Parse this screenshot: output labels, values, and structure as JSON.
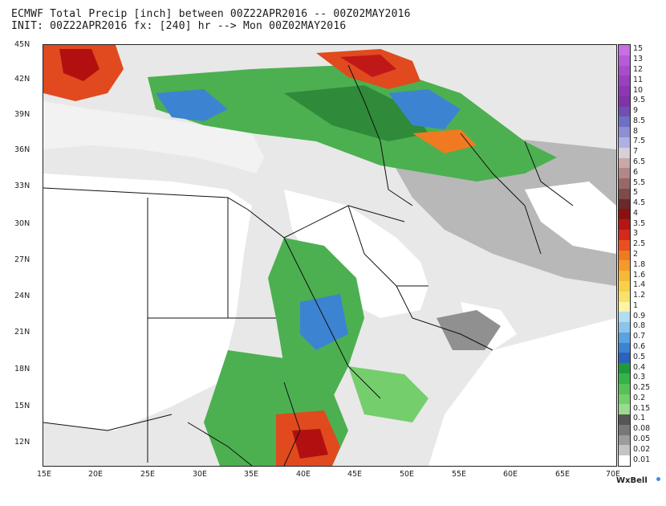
{
  "title_line1": "ECMWF Total Precip [inch] between 00Z22APR2016 -- 00Z02MAY2016",
  "title_line2": "INIT: 00Z22APR2016 fx: [240] hr --> Mon 00Z02MAY2016",
  "lat_labels": [
    "45N",
    "42N",
    "39N",
    "36N",
    "33N",
    "30N",
    "27N",
    "24N",
    "21N",
    "18N",
    "15N",
    "12N"
  ],
  "lon_labels": [
    "15E",
    "20E",
    "25E",
    "30E",
    "35E",
    "40E",
    "45E",
    "50E",
    "55E",
    "60E",
    "65E",
    "70E"
  ],
  "lat_range": [
    10,
    45
  ],
  "lon_range": [
    15,
    70
  ],
  "colorbar": {
    "labels": [
      "15",
      "13",
      "12",
      "11",
      "10",
      "9.5",
      "9",
      "8.5",
      "8",
      "7.5",
      "7",
      "6.5",
      "6",
      "5.5",
      "5",
      "4.5",
      "4",
      "3.5",
      "3",
      "2.5",
      "2",
      "1.8",
      "1.6",
      "1.4",
      "1.2",
      "1",
      "0.9",
      "0.8",
      "0.7",
      "0.6",
      "0.5",
      "0.4",
      "0.3",
      "0.25",
      "0.2",
      "0.15",
      "0.1",
      "0.08",
      "0.05",
      "0.02",
      "0.01"
    ],
    "colors": [
      "#c76fe3",
      "#b65ad8",
      "#a84ccc",
      "#9a40c0",
      "#8c38b4",
      "#7f33a8",
      "#6f4fb0",
      "#6f70c4",
      "#8d8ed4",
      "#aeb0e2",
      "#d6d0d8",
      "#c8a8a8",
      "#b08888",
      "#986868",
      "#7e4a4a",
      "#6a2a2a",
      "#8c1010",
      "#b41616",
      "#d42a1c",
      "#e85020",
      "#f07a22",
      "#f49a2c",
      "#f6b838",
      "#f8d04a",
      "#f8e26a",
      "#fdf3a4",
      "#b2dcf2",
      "#8cc4ec",
      "#5aa2e0",
      "#3c84d2",
      "#2a62bc",
      "#1e9a3a",
      "#34b448",
      "#54c258",
      "#74ce6c",
      "#98dc8c",
      "#565656",
      "#787878",
      "#9c9c9c",
      "#c4c4c4",
      "#ffffff"
    ]
  },
  "brand": "WxBell"
}
